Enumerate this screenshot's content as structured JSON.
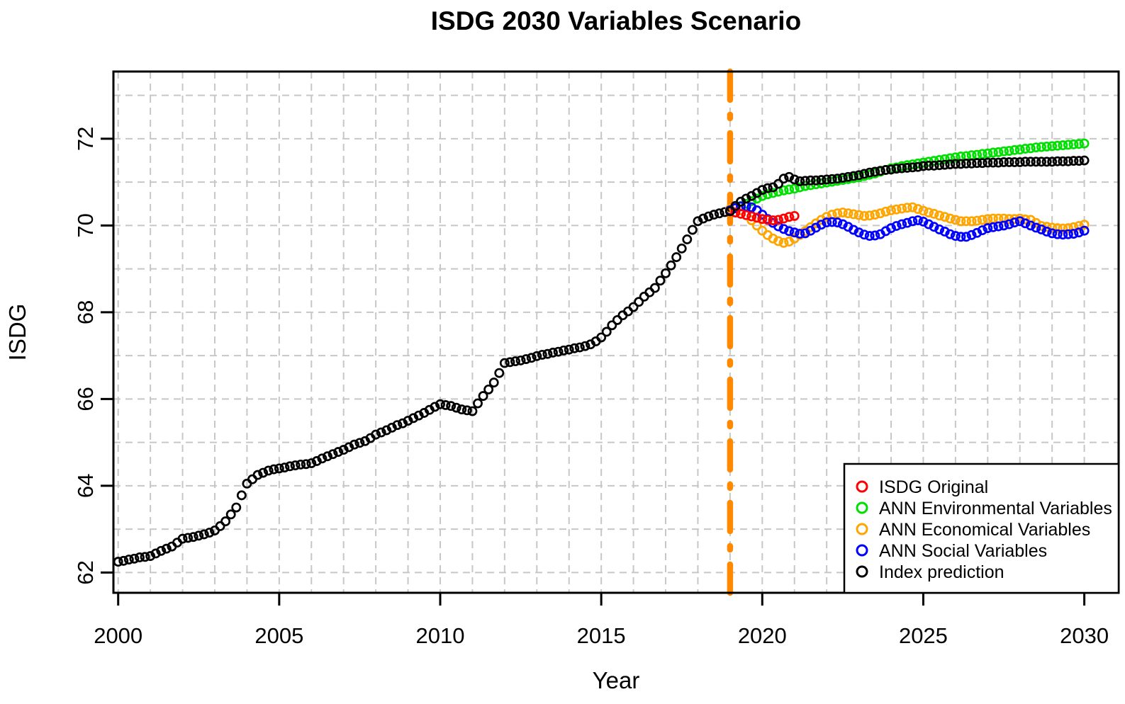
{
  "chart_data": {
    "type": "scatter",
    "title": "ISDG 2030 Variables Scenario",
    "xlabel": "Year",
    "ylabel": "ISDG",
    "x_ticks": [
      2000,
      2005,
      2010,
      2015,
      2020,
      2025,
      2030
    ],
    "y_ticks": [
      62,
      64,
      66,
      68,
      70,
      72
    ],
    "xlim": [
      1999.85,
      2031.1
    ],
    "ylim": [
      61.5,
      73.55
    ],
    "grid": {
      "on": true,
      "x_lines_start": 2000,
      "x_lines_end": 2030,
      "x_lines_step": 1,
      "y_lines_start": 62,
      "y_lines_end": 73,
      "y_lines_step": 1,
      "color": "#c7c7c7"
    },
    "annotation_vline": {
      "x": 2019,
      "color": "#ff8a00",
      "style": "dash-dot",
      "width": 8.5
    },
    "marker": "open-circle",
    "step_years": 0.166667,
    "series": [
      {
        "id": "isdg-observed",
        "color": "#000000",
        "start_year": 2000,
        "values": [
          62.25,
          62.27,
          62.3,
          62.32,
          62.35,
          62.36,
          62.38,
          62.44,
          62.5,
          62.55,
          62.6,
          62.69,
          62.78,
          62.8,
          62.82,
          62.85,
          62.88,
          62.92,
          62.97,
          63.07,
          63.18,
          63.34,
          63.5,
          63.78,
          64.05,
          64.15,
          64.25,
          64.3,
          64.35,
          64.38,
          64.4,
          64.42,
          64.45,
          64.47,
          64.49,
          64.5,
          64.52,
          64.57,
          64.63,
          64.68,
          64.73,
          64.78,
          64.83,
          64.89,
          64.95,
          64.99,
          65.03,
          65.1,
          65.18,
          65.23,
          65.28,
          65.34,
          65.4,
          65.44,
          65.5,
          65.56,
          65.62,
          65.68,
          65.75,
          65.82,
          65.88,
          65.86,
          65.84,
          65.8,
          65.76,
          65.74,
          65.72,
          65.9,
          66.07,
          66.22,
          66.38,
          66.6,
          66.83,
          66.85,
          66.87,
          66.89,
          66.92,
          66.95,
          66.99,
          67.02,
          67.04,
          67.07,
          67.09,
          67.12,
          67.14,
          67.17,
          67.19,
          67.22,
          67.26,
          67.33,
          67.42,
          67.55,
          67.7,
          67.82,
          67.93,
          68.02,
          68.12,
          68.24,
          68.36,
          68.46,
          68.56,
          68.73,
          68.9,
          69.08,
          69.27,
          69.47,
          69.68,
          69.9,
          70.1,
          70.16,
          70.21,
          70.25,
          70.28,
          70.31,
          70.33
        ]
      },
      {
        "id": "ann-environmental",
        "color": "#00e000",
        "start_year": 2019,
        "values": [
          70.35,
          70.4,
          70.45,
          70.5,
          70.56,
          70.62,
          70.68,
          70.72,
          70.75,
          70.78,
          70.81,
          70.83,
          70.85,
          70.88,
          70.91,
          70.93,
          70.95,
          70.97,
          70.99,
          71.01,
          71.03,
          71.05,
          71.07,
          71.09,
          71.11,
          71.14,
          71.17,
          71.2,
          71.24,
          71.28,
          71.32,
          71.34,
          71.37,
          71.39,
          71.41,
          71.43,
          71.45,
          71.47,
          71.49,
          71.51,
          71.53,
          71.55,
          71.57,
          71.59,
          71.6,
          71.62,
          71.63,
          71.65,
          71.66,
          71.68,
          71.69,
          71.71,
          71.72,
          71.74,
          71.75,
          71.77,
          71.78,
          71.8,
          71.81,
          71.82,
          71.83,
          71.84,
          71.85,
          71.86,
          71.87,
          71.88,
          71.89
        ]
      },
      {
        "id": "ann-economical",
        "color": "#ffa500",
        "start_year": 2019,
        "values": [
          70.38,
          70.42,
          70.35,
          70.24,
          70.12,
          70.0,
          69.88,
          69.78,
          69.7,
          69.64,
          69.6,
          69.63,
          69.7,
          69.78,
          69.87,
          69.96,
          70.05,
          70.13,
          70.2,
          70.25,
          70.28,
          70.3,
          70.28,
          70.26,
          70.24,
          70.22,
          70.23,
          70.25,
          70.28,
          70.32,
          70.35,
          70.37,
          70.39,
          70.41,
          70.42,
          70.38,
          70.34,
          70.3,
          70.27,
          70.23,
          70.2,
          70.16,
          70.13,
          70.1,
          70.1,
          70.1,
          70.11,
          70.13,
          70.15,
          70.16,
          70.16,
          70.16,
          70.15,
          70.15,
          70.16,
          70.14,
          70.13,
          70.06,
          69.99,
          69.97,
          69.95,
          69.94,
          69.93,
          69.94,
          69.96,
          69.99,
          70.02
        ]
      },
      {
        "id": "ann-social",
        "color": "#0000ff",
        "start_year": 2019,
        "values": [
          70.35,
          70.4,
          70.44,
          70.44,
          70.42,
          70.35,
          70.25,
          70.15,
          70.06,
          69.98,
          69.92,
          69.87,
          69.84,
          69.81,
          69.82,
          69.88,
          69.95,
          70.02,
          70.07,
          70.08,
          70.07,
          70.03,
          69.97,
          69.9,
          69.84,
          69.79,
          69.76,
          69.77,
          69.8,
          69.87,
          69.94,
          69.99,
          70.03,
          70.06,
          70.1,
          70.12,
          70.09,
          70.03,
          69.97,
          69.91,
          69.86,
          69.8,
          69.76,
          69.74,
          69.74,
          69.78,
          69.83,
          69.89,
          69.94,
          69.96,
          69.98,
          70.0,
          70.03,
          70.07,
          70.1,
          70.05,
          70.0,
          69.95,
          69.91,
          69.86,
          69.82,
          69.8,
          69.79,
          69.8,
          69.81,
          69.84,
          69.88
        ]
      },
      {
        "id": "isdg-original",
        "color": "#ff0000",
        "start_year": 2019,
        "values": [
          70.33,
          70.3,
          70.27,
          70.24,
          70.21,
          70.18,
          70.15,
          70.13,
          70.12,
          70.13,
          70.16,
          70.2,
          70.22
        ]
      },
      {
        "id": "index-prediction",
        "color": "#000000",
        "start_year": 2019,
        "values": [
          70.33,
          70.45,
          70.55,
          70.62,
          70.68,
          70.75,
          70.82,
          70.86,
          70.88,
          70.96,
          71.08,
          71.12,
          71.06,
          71.02,
          71.03,
          71.04,
          71.04,
          71.05,
          71.06,
          71.07,
          71.08,
          71.1,
          71.12,
          71.14,
          71.16,
          71.19,
          71.22,
          71.24,
          71.26,
          71.28,
          71.29,
          71.31,
          71.32,
          71.33,
          71.34,
          71.35,
          71.37,
          71.38,
          71.38,
          71.39,
          71.4,
          71.41,
          71.42,
          71.42,
          71.43,
          71.43,
          71.44,
          71.44,
          71.45,
          71.45,
          71.45,
          71.46,
          71.46,
          71.46,
          71.46,
          71.47,
          71.47,
          71.47,
          71.47,
          71.47,
          71.47,
          71.48,
          71.48,
          71.48,
          71.49,
          71.49,
          71.5
        ]
      }
    ],
    "legend_position": "bottom-right"
  },
  "legend": {
    "items": [
      {
        "label": "ISDG Original",
        "color": "#ff0000"
      },
      {
        "label": "ANN Environmental Variables",
        "color": "#00e000"
      },
      {
        "label": "ANN Economical Variables",
        "color": "#ffa500"
      },
      {
        "label": "ANN Social Variables",
        "color": "#0000ff"
      },
      {
        "label": "Index prediction",
        "color": "#000000"
      }
    ]
  }
}
